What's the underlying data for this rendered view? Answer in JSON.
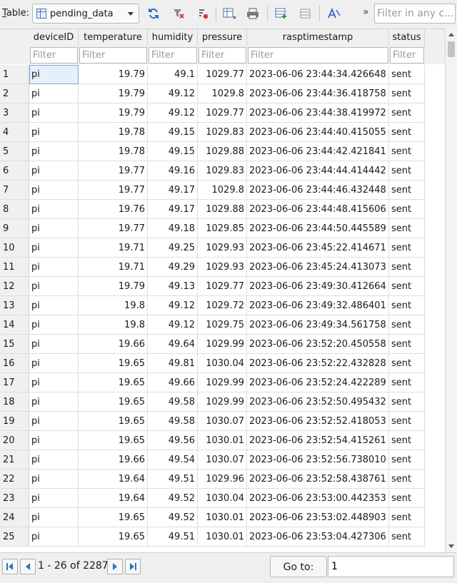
{
  "toolbar": {
    "table_label_accel": "T",
    "table_label_rest": "able:",
    "selected_table": "pending_data",
    "filter_any_placeholder": "Filter in any c...",
    "more": "»"
  },
  "columns": [
    "deviceID",
    "temperature",
    "humidity",
    "pressure",
    "rasptimestamp",
    "status"
  ],
  "filter_placeholder": "Filter",
  "rows": [
    [
      "1",
      "pi",
      "19.79",
      "49.1",
      "1029.77",
      "2023-06-06 23:44:34.426648",
      "sent"
    ],
    [
      "2",
      "pi",
      "19.79",
      "49.12",
      "1029.8",
      "2023-06-06 23:44:36.418758",
      "sent"
    ],
    [
      "3",
      "pi",
      "19.79",
      "49.12",
      "1029.77",
      "2023-06-06 23:44:38.419972",
      "sent"
    ],
    [
      "4",
      "pi",
      "19.78",
      "49.15",
      "1029.83",
      "2023-06-06 23:44:40.415055",
      "sent"
    ],
    [
      "5",
      "pi",
      "19.78",
      "49.15",
      "1029.88",
      "2023-06-06 23:44:42.421841",
      "sent"
    ],
    [
      "6",
      "pi",
      "19.77",
      "49.16",
      "1029.83",
      "2023-06-06 23:44:44.414442",
      "sent"
    ],
    [
      "7",
      "pi",
      "19.77",
      "49.17",
      "1029.8",
      "2023-06-06 23:44:46.432448",
      "sent"
    ],
    [
      "8",
      "pi",
      "19.76",
      "49.17",
      "1029.88",
      "2023-06-06 23:44:48.415606",
      "sent"
    ],
    [
      "9",
      "pi",
      "19.77",
      "49.18",
      "1029.85",
      "2023-06-06 23:44:50.445589",
      "sent"
    ],
    [
      "10",
      "pi",
      "19.71",
      "49.25",
      "1029.93",
      "2023-06-06 23:45:22.414671",
      "sent"
    ],
    [
      "11",
      "pi",
      "19.71",
      "49.29",
      "1029.93",
      "2023-06-06 23:45:24.413073",
      "sent"
    ],
    [
      "12",
      "pi",
      "19.79",
      "49.13",
      "1029.77",
      "2023-06-06 23:49:30.412664",
      "sent"
    ],
    [
      "13",
      "pi",
      "19.8",
      "49.12",
      "1029.72",
      "2023-06-06 23:49:32.486401",
      "sent"
    ],
    [
      "14",
      "pi",
      "19.8",
      "49.12",
      "1029.75",
      "2023-06-06 23:49:34.561758",
      "sent"
    ],
    [
      "15",
      "pi",
      "19.66",
      "49.64",
      "1029.99",
      "2023-06-06 23:52:20.450558",
      "sent"
    ],
    [
      "16",
      "pi",
      "19.65",
      "49.81",
      "1030.04",
      "2023-06-06 23:52:22.432828",
      "sent"
    ],
    [
      "17",
      "pi",
      "19.65",
      "49.66",
      "1029.99",
      "2023-06-06 23:52:24.422289",
      "sent"
    ],
    [
      "18",
      "pi",
      "19.65",
      "49.58",
      "1029.99",
      "2023-06-06 23:52:50.495432",
      "sent"
    ],
    [
      "19",
      "pi",
      "19.65",
      "49.58",
      "1030.07",
      "2023-06-06 23:52:52.418053",
      "sent"
    ],
    [
      "20",
      "pi",
      "19.65",
      "49.56",
      "1030.01",
      "2023-06-06 23:52:54.415261",
      "sent"
    ],
    [
      "21",
      "pi",
      "19.66",
      "49.54",
      "1030.07",
      "2023-06-06 23:52:56.738010",
      "sent"
    ],
    [
      "22",
      "pi",
      "19.64",
      "49.51",
      "1029.96",
      "2023-06-06 23:52:58.438761",
      "sent"
    ],
    [
      "23",
      "pi",
      "19.64",
      "49.52",
      "1030.04",
      "2023-06-06 23:53:00.442353",
      "sent"
    ],
    [
      "24",
      "pi",
      "19.65",
      "49.52",
      "1030.01",
      "2023-06-06 23:53:02.448903",
      "sent"
    ],
    [
      "25",
      "pi",
      "19.65",
      "49.51",
      "1030.01",
      "2023-06-06 23:53:04.427306",
      "sent"
    ]
  ],
  "footer": {
    "pager_text": "1 - 26 of 2287",
    "goto_label": "Go to:",
    "goto_value": "1"
  },
  "colors": {
    "accent": "#3b73c4",
    "selection": "#e6f0fb"
  }
}
